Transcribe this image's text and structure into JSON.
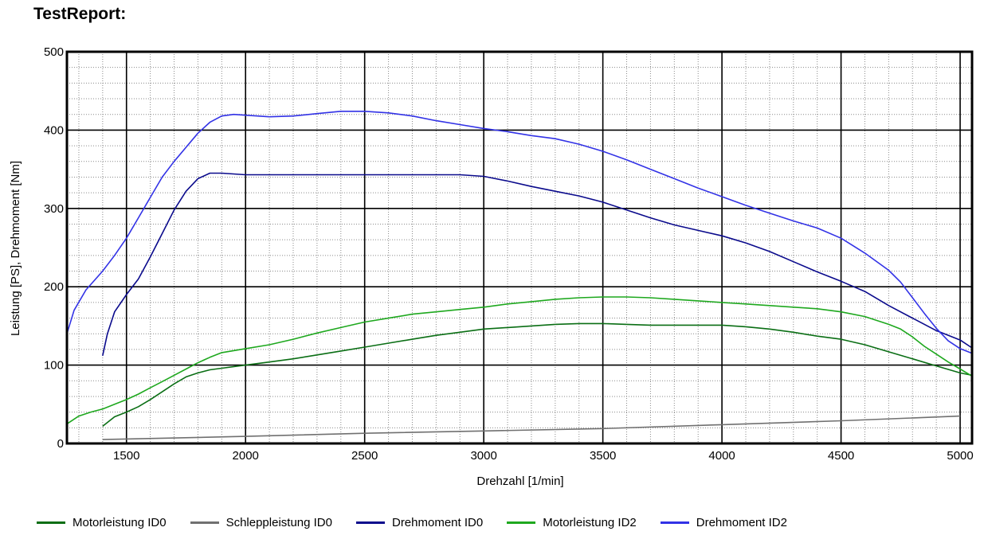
{
  "page_title": "TestReport:",
  "chart_data": {
    "type": "line",
    "xlabel": "Drehzahl [1/min]",
    "ylabel": "Leistung [PS], Drehmoment [Nm]",
    "xlim": [
      1250,
      5050
    ],
    "ylim": [
      0,
      500
    ],
    "x_ticks": [
      1500,
      2000,
      2500,
      3000,
      3500,
      4000,
      4500,
      5000
    ],
    "y_ticks": [
      0,
      100,
      200,
      300,
      400,
      500
    ],
    "grid": true,
    "legend_position": "bottom",
    "series": [
      {
        "name": "Motorleistung ID0",
        "color": "#0a6e14",
        "x": [
          1400,
          1450,
          1500,
          1550,
          1600,
          1650,
          1700,
          1750,
          1800,
          1850,
          1900,
          2000,
          2100,
          2200,
          2300,
          2400,
          2500,
          2600,
          2700,
          2800,
          2900,
          3000,
          3100,
          3200,
          3300,
          3400,
          3500,
          3600,
          3700,
          3800,
          3900,
          4000,
          4100,
          4200,
          4300,
          4400,
          4500,
          4600,
          4700,
          4800,
          4900,
          5000,
          5050
        ],
        "y": [
          22,
          34,
          40,
          47,
          56,
          66,
          76,
          85,
          90,
          94,
          96,
          100,
          104,
          108,
          113,
          118,
          123,
          128,
          133,
          138,
          142,
          146,
          148,
          150,
          152,
          153,
          153,
          152,
          151,
          151,
          151,
          151,
          149,
          146,
          142,
          137,
          133,
          126,
          117,
          108,
          99,
          90,
          87
        ]
      },
      {
        "name": "Schleppleistung ID0",
        "color": "#707070",
        "x": [
          1400,
          2000,
          2500,
          3000,
          3500,
          4000,
          4500,
          5000
        ],
        "y": [
          5,
          9,
          13,
          16,
          19,
          24,
          29,
          35
        ]
      },
      {
        "name": "Drehmoment ID0",
        "color": "#0a0a8c",
        "x": [
          1400,
          1420,
          1450,
          1500,
          1550,
          1600,
          1650,
          1700,
          1750,
          1800,
          1850,
          1900,
          2000,
          2100,
          2200,
          2400,
          2600,
          2800,
          2900,
          3000,
          3100,
          3200,
          3300,
          3400,
          3500,
          3600,
          3700,
          3800,
          3900,
          4000,
          4100,
          4200,
          4300,
          4400,
          4500,
          4600,
          4700,
          4800,
          4900,
          5000,
          5050
        ],
        "y": [
          112,
          140,
          168,
          190,
          210,
          238,
          268,
          298,
          322,
          338,
          345,
          345,
          343,
          343,
          343,
          343,
          343,
          343,
          343,
          341,
          335,
          328,
          322,
          316,
          308,
          298,
          288,
          279,
          272,
          265,
          256,
          245,
          232,
          219,
          207,
          194,
          176,
          160,
          144,
          132,
          122
        ]
      },
      {
        "name": "Motorleistung ID2",
        "color": "#1ea81e",
        "x": [
          1250,
          1300,
          1350,
          1400,
          1450,
          1500,
          1550,
          1600,
          1650,
          1700,
          1750,
          1800,
          1850,
          1900,
          2000,
          2100,
          2200,
          2300,
          2400,
          2500,
          2600,
          2700,
          2800,
          2900,
          3000,
          3100,
          3200,
          3300,
          3400,
          3500,
          3600,
          3700,
          3800,
          3900,
          4000,
          4100,
          4200,
          4300,
          4400,
          4500,
          4600,
          4700,
          4750,
          4800,
          4850,
          4900,
          4950,
          5000,
          5050
        ],
        "y": [
          25,
          35,
          40,
          44,
          50,
          56,
          63,
          71,
          79,
          87,
          95,
          103,
          110,
          116,
          121,
          126,
          133,
          141,
          148,
          155,
          160,
          165,
          168,
          171,
          174,
          178,
          181,
          184,
          186,
          187,
          187,
          186,
          184,
          182,
          180,
          178,
          176,
          174,
          172,
          168,
          162,
          152,
          146,
          136,
          124,
          114,
          104,
          95,
          86
        ]
      },
      {
        "name": "Drehmoment ID2",
        "color": "#3232e6",
        "x": [
          1250,
          1280,
          1330,
          1400,
          1450,
          1500,
          1550,
          1600,
          1650,
          1700,
          1750,
          1800,
          1850,
          1900,
          1950,
          2000,
          2100,
          2200,
          2300,
          2400,
          2500,
          2600,
          2700,
          2800,
          2900,
          3000,
          3100,
          3200,
          3300,
          3400,
          3500,
          3600,
          3700,
          3800,
          3900,
          4000,
          4100,
          4200,
          4300,
          4400,
          4500,
          4600,
          4700,
          4750,
          4800,
          4850,
          4900,
          4950,
          5000,
          5050
        ],
        "y": [
          140,
          170,
          196,
          220,
          240,
          262,
          288,
          314,
          340,
          360,
          378,
          396,
          410,
          418,
          420,
          419,
          417,
          418,
          421,
          424,
          424,
          422,
          418,
          412,
          407,
          402,
          398,
          393,
          389,
          382,
          373,
          362,
          350,
          338,
          326,
          315,
          304,
          294,
          284,
          275,
          262,
          243,
          221,
          206,
          186,
          166,
          147,
          131,
          121,
          115
        ]
      }
    ]
  }
}
